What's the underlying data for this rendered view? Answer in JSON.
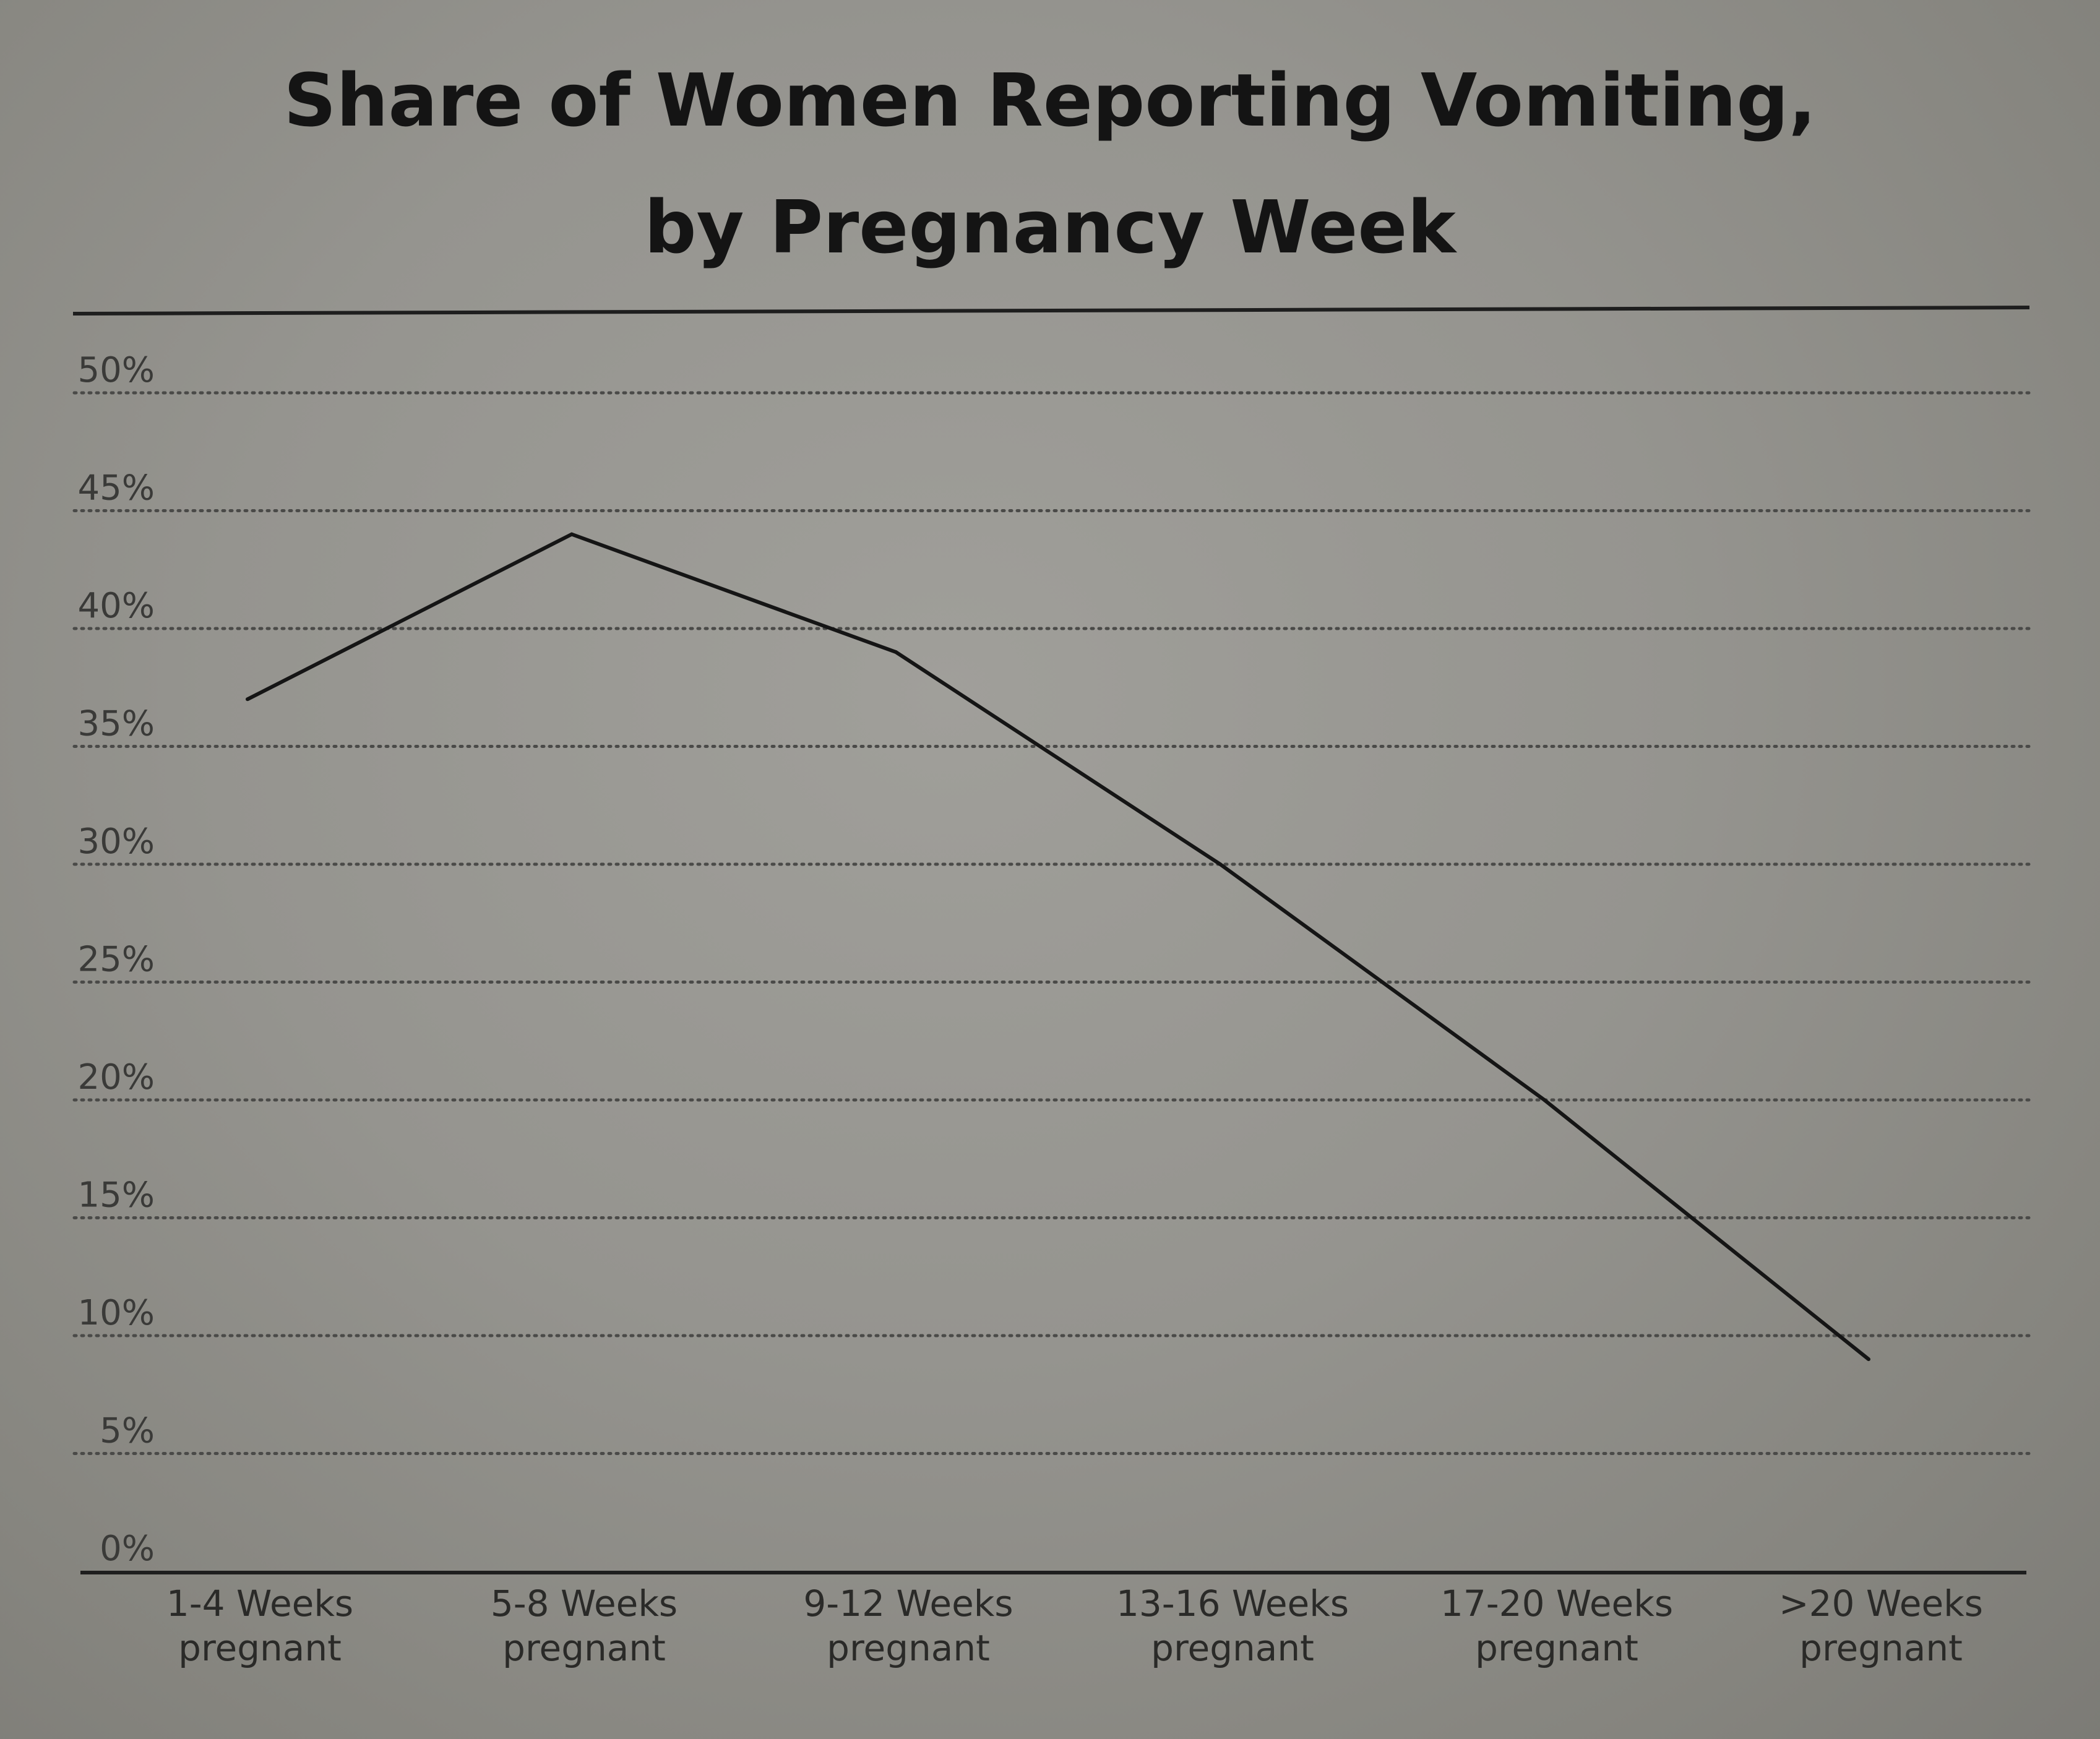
{
  "chart_data": {
    "type": "line",
    "title_line1": "Share of Women Reporting Vomiting,",
    "title_line2": "by Pregnancy Week",
    "xlabel": "",
    "ylabel": "",
    "ylim": [
      0,
      50
    ],
    "yticks": [
      "0%",
      "5%",
      "10%",
      "15%",
      "20%",
      "25%",
      "30%",
      "35%",
      "40%",
      "45%",
      "50%"
    ],
    "categories": [
      [
        "1-4 Weeks",
        "pregnant"
      ],
      [
        "5-8 Weeks",
        "pregnant"
      ],
      [
        "9-12 Weeks",
        "pregnant"
      ],
      [
        "13-16 Weeks",
        "pregnant"
      ],
      [
        "17-20 Weeks",
        "pregnant"
      ],
      [
        ">20 Weeks",
        "pregnant"
      ]
    ],
    "series": [
      {
        "values": [
          37,
          44,
          39,
          30,
          20,
          9
        ]
      }
    ],
    "grid": true,
    "grid_style": "dotted",
    "colors": {
      "line": "#151515",
      "grid": "#4a4a48",
      "axis": "#1e1e1e"
    }
  }
}
